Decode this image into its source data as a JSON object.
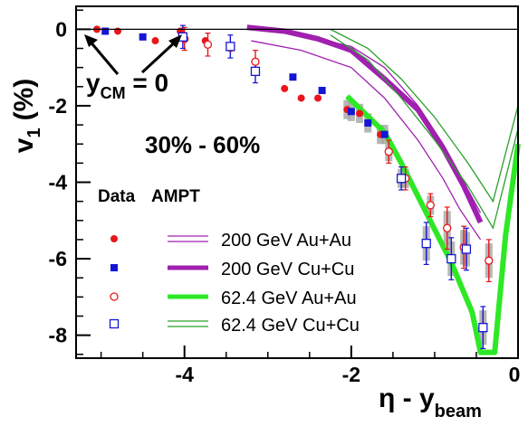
{
  "chart_data": {
    "type": "scatter",
    "xlabel": "η - y",
    "xlabel_sub": "beam",
    "ylabel": "v",
    "ylabel_sub": "1",
    "ylabel_unit": "(%)",
    "xlim": [
      -5.3,
      0
    ],
    "ylim": [
      -8.6,
      0.6
    ],
    "x_ticks": [
      -4,
      -2,
      0
    ],
    "y_ticks": [
      0,
      -2,
      -4,
      -6,
      -8
    ],
    "x_tick_labels": [
      "-4",
      "-2",
      "0"
    ],
    "y_tick_labels": [
      "0",
      "-2",
      "-4",
      "-6",
      "-8"
    ],
    "centrality_label": "30% - 60%",
    "legend_headers": {
      "data": "Data",
      "model": "AMPT"
    },
    "annotation": {
      "y": "y",
      "sub": "CM",
      "rest": " = 0"
    },
    "series": [
      {
        "name": "200 GeV Au+Au",
        "marker": "filled-circle",
        "color": "#e8161b",
        "points": [
          {
            "x": -5.05,
            "y": 0.0
          },
          {
            "x": -4.8,
            "y": -0.05
          },
          {
            "x": -4.35,
            "y": -0.3
          },
          {
            "x": -4.05,
            "y": -0.05
          },
          {
            "x": -3.75,
            "y": -0.3
          },
          {
            "x": -3.45,
            "y": -0.5
          },
          {
            "x": -2.8,
            "y": -1.55
          },
          {
            "x": -2.6,
            "y": -1.8
          },
          {
            "x": -2.4,
            "y": -1.8
          },
          {
            "x": -2.05,
            "y": -2.1
          },
          {
            "x": -1.9,
            "y": -2.2
          },
          {
            "x": -1.65,
            "y": -2.75
          }
        ]
      },
      {
        "name": "200 GeV Cu+Cu",
        "marker": "filled-square",
        "color": "#1515d6",
        "points": [
          {
            "x": -4.95,
            "y": -0.05
          },
          {
            "x": -4.5,
            "y": -0.2
          },
          {
            "x": -2.7,
            "y": -1.25
          },
          {
            "x": -2.35,
            "y": -1.6
          },
          {
            "x": -2.0,
            "y": -2.15
          },
          {
            "x": -1.8,
            "y": -2.45
          },
          {
            "x": -1.6,
            "y": -2.75
          }
        ]
      },
      {
        "name": "62.4 GeV Au+Au",
        "marker": "open-circle",
        "color": "#e8161b",
        "points": [
          {
            "x": -4.0,
            "y": -0.25
          },
          {
            "x": -3.72,
            "y": -0.4
          },
          {
            "x": -3.15,
            "y": -0.85
          },
          {
            "x": -1.55,
            "y": -3.2
          },
          {
            "x": -1.35,
            "y": -3.9
          },
          {
            "x": -1.05,
            "y": -4.6
          },
          {
            "x": -0.85,
            "y": -5.2
          },
          {
            "x": -0.65,
            "y": -5.7
          },
          {
            "x": -0.35,
            "y": -6.05
          }
        ]
      },
      {
        "name": "62.4 GeV Cu+Cu",
        "marker": "open-square",
        "color": "#1515d6",
        "points": [
          {
            "x": -4.02,
            "y": -0.2
          },
          {
            "x": -3.45,
            "y": -0.45
          },
          {
            "x": -3.15,
            "y": -1.1
          },
          {
            "x": -1.4,
            "y": -3.9
          },
          {
            "x": -1.1,
            "y": -5.6
          },
          {
            "x": -0.8,
            "y": -6.0
          },
          {
            "x": -0.62,
            "y": -5.75
          },
          {
            "x": -0.42,
            "y": -7.8
          }
        ]
      }
    ],
    "model_curves": [
      {
        "name": "200 GeV Au+Au",
        "style": "double-line",
        "color": "#a020b0",
        "upper": [
          [
            -3.2,
            0.0
          ],
          [
            -2.6,
            -0.15
          ],
          [
            -2.0,
            -0.45
          ],
          [
            -1.6,
            -1.0
          ],
          [
            -1.2,
            -2.0
          ],
          [
            -0.9,
            -3.0
          ],
          [
            -0.7,
            -3.8
          ],
          [
            -0.45,
            -4.8
          ]
        ],
        "lower": [
          [
            -3.2,
            -0.3
          ],
          [
            -2.6,
            -0.55
          ],
          [
            -2.0,
            -1.0
          ],
          [
            -1.6,
            -1.8
          ],
          [
            -1.2,
            -2.9
          ],
          [
            -0.9,
            -3.9
          ],
          [
            -0.7,
            -4.7
          ],
          [
            -0.45,
            -5.5
          ]
        ]
      },
      {
        "name": "200 GeV Cu+Cu",
        "style": "thick",
        "color": "#a020b0",
        "points": [
          [
            -3.25,
            0.05
          ],
          [
            -2.8,
            -0.05
          ],
          [
            -2.4,
            -0.25
          ],
          [
            -2.0,
            -0.55
          ],
          [
            -1.6,
            -1.3
          ],
          [
            -1.2,
            -2.1
          ],
          [
            -0.9,
            -3.1
          ],
          [
            -0.65,
            -4.1
          ],
          [
            -0.45,
            -5.05
          ]
        ]
      },
      {
        "name": "62.4 GeV Au+Au",
        "style": "thick",
        "color": "#2ee826",
        "points": [
          [
            -2.05,
            -1.75
          ],
          [
            -1.6,
            -2.7
          ],
          [
            -1.4,
            -3.5
          ],
          [
            -1.1,
            -4.8
          ],
          [
            -0.8,
            -6.1
          ],
          [
            -0.55,
            -7.4
          ],
          [
            -0.45,
            -8.45
          ],
          [
            -0.28,
            -8.45
          ],
          [
            -0.15,
            -5.4
          ],
          [
            0,
            -3.0
          ]
        ]
      },
      {
        "name": "62.4 GeV Cu+Cu",
        "style": "double-line",
        "color": "#2aa02a",
        "upper": [
          [
            -2.25,
            0.0
          ],
          [
            -1.8,
            -0.5
          ],
          [
            -1.4,
            -1.3
          ],
          [
            -1.0,
            -2.3
          ],
          [
            -0.6,
            -3.5
          ],
          [
            -0.3,
            -4.5
          ],
          [
            0,
            -2.0
          ]
        ],
        "lower": [
          [
            -2.25,
            -0.15
          ],
          [
            -1.8,
            -0.8
          ],
          [
            -1.4,
            -1.8
          ],
          [
            -1.0,
            -2.9
          ],
          [
            -0.6,
            -4.1
          ],
          [
            -0.3,
            -5.2
          ],
          [
            0,
            -2.6
          ]
        ]
      }
    ],
    "grid": false,
    "legend_placement": "bottom-left"
  },
  "colors": {
    "red": "#e8161b",
    "blue": "#1515d6",
    "purple": "#a020b0",
    "green": "#2ee826",
    "green_dark": "#2aa02a",
    "sys_band": "#a9a9a9"
  }
}
